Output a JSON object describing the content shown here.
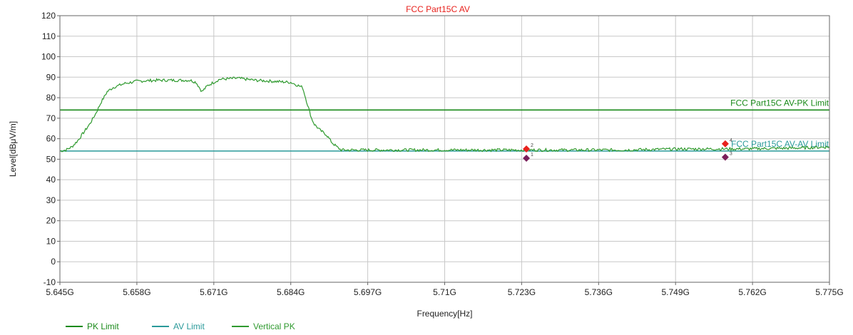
{
  "chart_data": {
    "type": "line",
    "title": "FCC Part15C AV",
    "xlabel": "Frequency[Hz]",
    "ylabel": "Level[dBμV/m]",
    "xlim": [
      5.645,
      5.775
    ],
    "ylim": [
      -10,
      120
    ],
    "x_ticks": [
      "5.645G",
      "5.658G",
      "5.671G",
      "5.684G",
      "5.697G",
      "5.71G",
      "5.723G",
      "5.736G",
      "5.749G",
      "5.762G",
      "5.775G"
    ],
    "y_ticks": [
      "120",
      "110",
      "100",
      "90",
      "80",
      "70",
      "60",
      "50",
      "40",
      "30",
      "20",
      "10",
      "0",
      "-10"
    ],
    "grid": true,
    "legend_position": "bottom-left",
    "limit_lines": [
      {
        "name": "PK Limit",
        "y": 74,
        "color": "#1a8a1a",
        "annotation": "FCC Part15C AV-PK Limit"
      },
      {
        "name": "AV Limit",
        "y": 54,
        "color": "#2a9a9a",
        "annotation": "FCC Part15C AV-AV Limit"
      }
    ],
    "series": [
      {
        "name": "Vertical PK",
        "color": "#2f9a2f",
        "x": [
          5.645,
          5.646,
          5.647,
          5.648,
          5.649,
          5.65,
          5.651,
          5.652,
          5.653,
          5.654,
          5.656,
          5.658,
          5.661,
          5.664,
          5.667,
          5.668,
          5.669,
          5.67,
          5.672,
          5.675,
          5.678,
          5.681,
          5.684,
          5.686,
          5.6865,
          5.687,
          5.6875,
          5.688,
          5.689,
          5.69,
          5.691,
          5.692,
          5.6925,
          5.695,
          5.7,
          5.71,
          5.72,
          5.73,
          5.74,
          5.75,
          5.76,
          5.77,
          5.775
        ],
        "y": [
          54,
          54.5,
          56,
          59,
          63,
          67,
          72,
          78,
          83,
          85,
          87,
          88,
          88.5,
          88.5,
          88.5,
          87.5,
          83,
          86,
          89,
          89.5,
          88.5,
          88,
          87.5,
          85,
          80,
          75,
          70,
          67,
          64,
          62,
          58,
          55.5,
          54.5,
          54.5,
          54.5,
          54.5,
          54.5,
          54.5,
          54.5,
          55,
          55,
          55.5,
          56
        ]
      }
    ],
    "markers": [
      {
        "label": "1",
        "x": 5.7238,
        "y": 50.5,
        "color": "#7a1f5a"
      },
      {
        "label": "2",
        "x": 5.7238,
        "y": 55,
        "color": "#e8211c"
      },
      {
        "label": "3",
        "x": 5.7574,
        "y": 51,
        "color": "#7a1f5a"
      },
      {
        "label": "4",
        "x": 5.7574,
        "y": 57.5,
        "color": "#e8211c"
      }
    ],
    "colors": {
      "title": "#e8211c",
      "grid": "#c8c8c8",
      "frame": "#666666"
    }
  }
}
